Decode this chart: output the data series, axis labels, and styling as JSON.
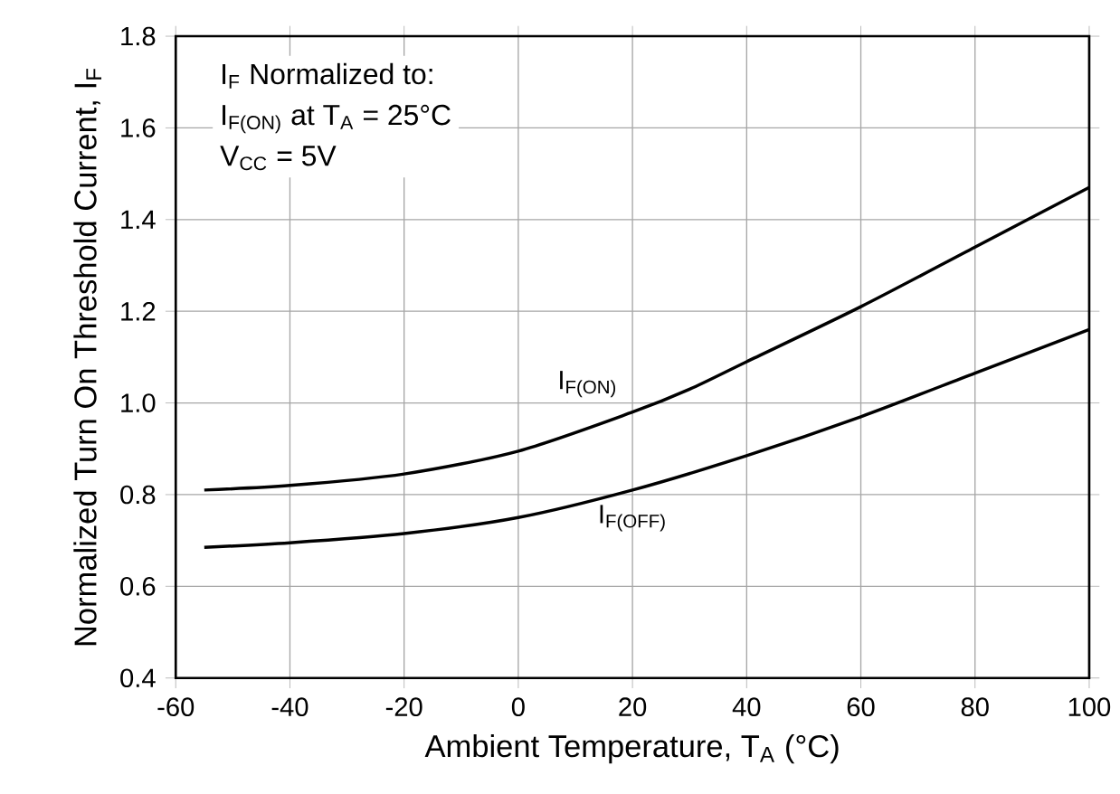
{
  "chart_data": {
    "type": "line",
    "xlabel": "Ambient Temperature, T$_{A}$ (°C)",
    "ylabel": "Normalized Turn On Threshold Current, I$_{F}$",
    "annotations": [
      "I$_{F}$ Normalized to:",
      "I$_{F(ON)}$ at T$_{A}$ = 25°C",
      "V$_{CC}$ = 5V"
    ],
    "xlim": [
      -60,
      100
    ],
    "xticks": [
      -60,
      -40,
      -20,
      0,
      20,
      40,
      60,
      80,
      100
    ],
    "ylim": [
      0.4,
      1.8
    ],
    "yticks": [
      {
        "value": 0.4,
        "label": "0.4"
      },
      {
        "value": 0.6,
        "label": "0.6"
      },
      {
        "value": 0.8,
        "label": "0.8"
      },
      {
        "value": 1.0,
        "label": "1.0"
      },
      {
        "value": 1.2,
        "label": "1.2"
      },
      {
        "value": 1.4,
        "label": "1.4"
      },
      {
        "value": 1.6,
        "label": "1.6"
      },
      {
        "value": 1.8,
        "label": "1.8"
      }
    ],
    "grid": true,
    "series": [
      {
        "name": "I$_{F(ON)}$",
        "color": "#000000",
        "x": [
          -55,
          -40,
          -20,
          0,
          20,
          30,
          40,
          60,
          80,
          100
        ],
        "values": [
          0.81,
          0.82,
          0.845,
          0.895,
          0.98,
          1.03,
          1.09,
          1.21,
          1.34,
          1.47
        ]
      },
      {
        "name": "I$_{F(OFF)}$",
        "color": "#000000",
        "x": [
          -55,
          -40,
          -20,
          0,
          20,
          40,
          60,
          80,
          100
        ],
        "values": [
          0.685,
          0.695,
          0.715,
          0.75,
          0.81,
          0.885,
          0.97,
          1.065,
          1.16
        ]
      }
    ]
  }
}
